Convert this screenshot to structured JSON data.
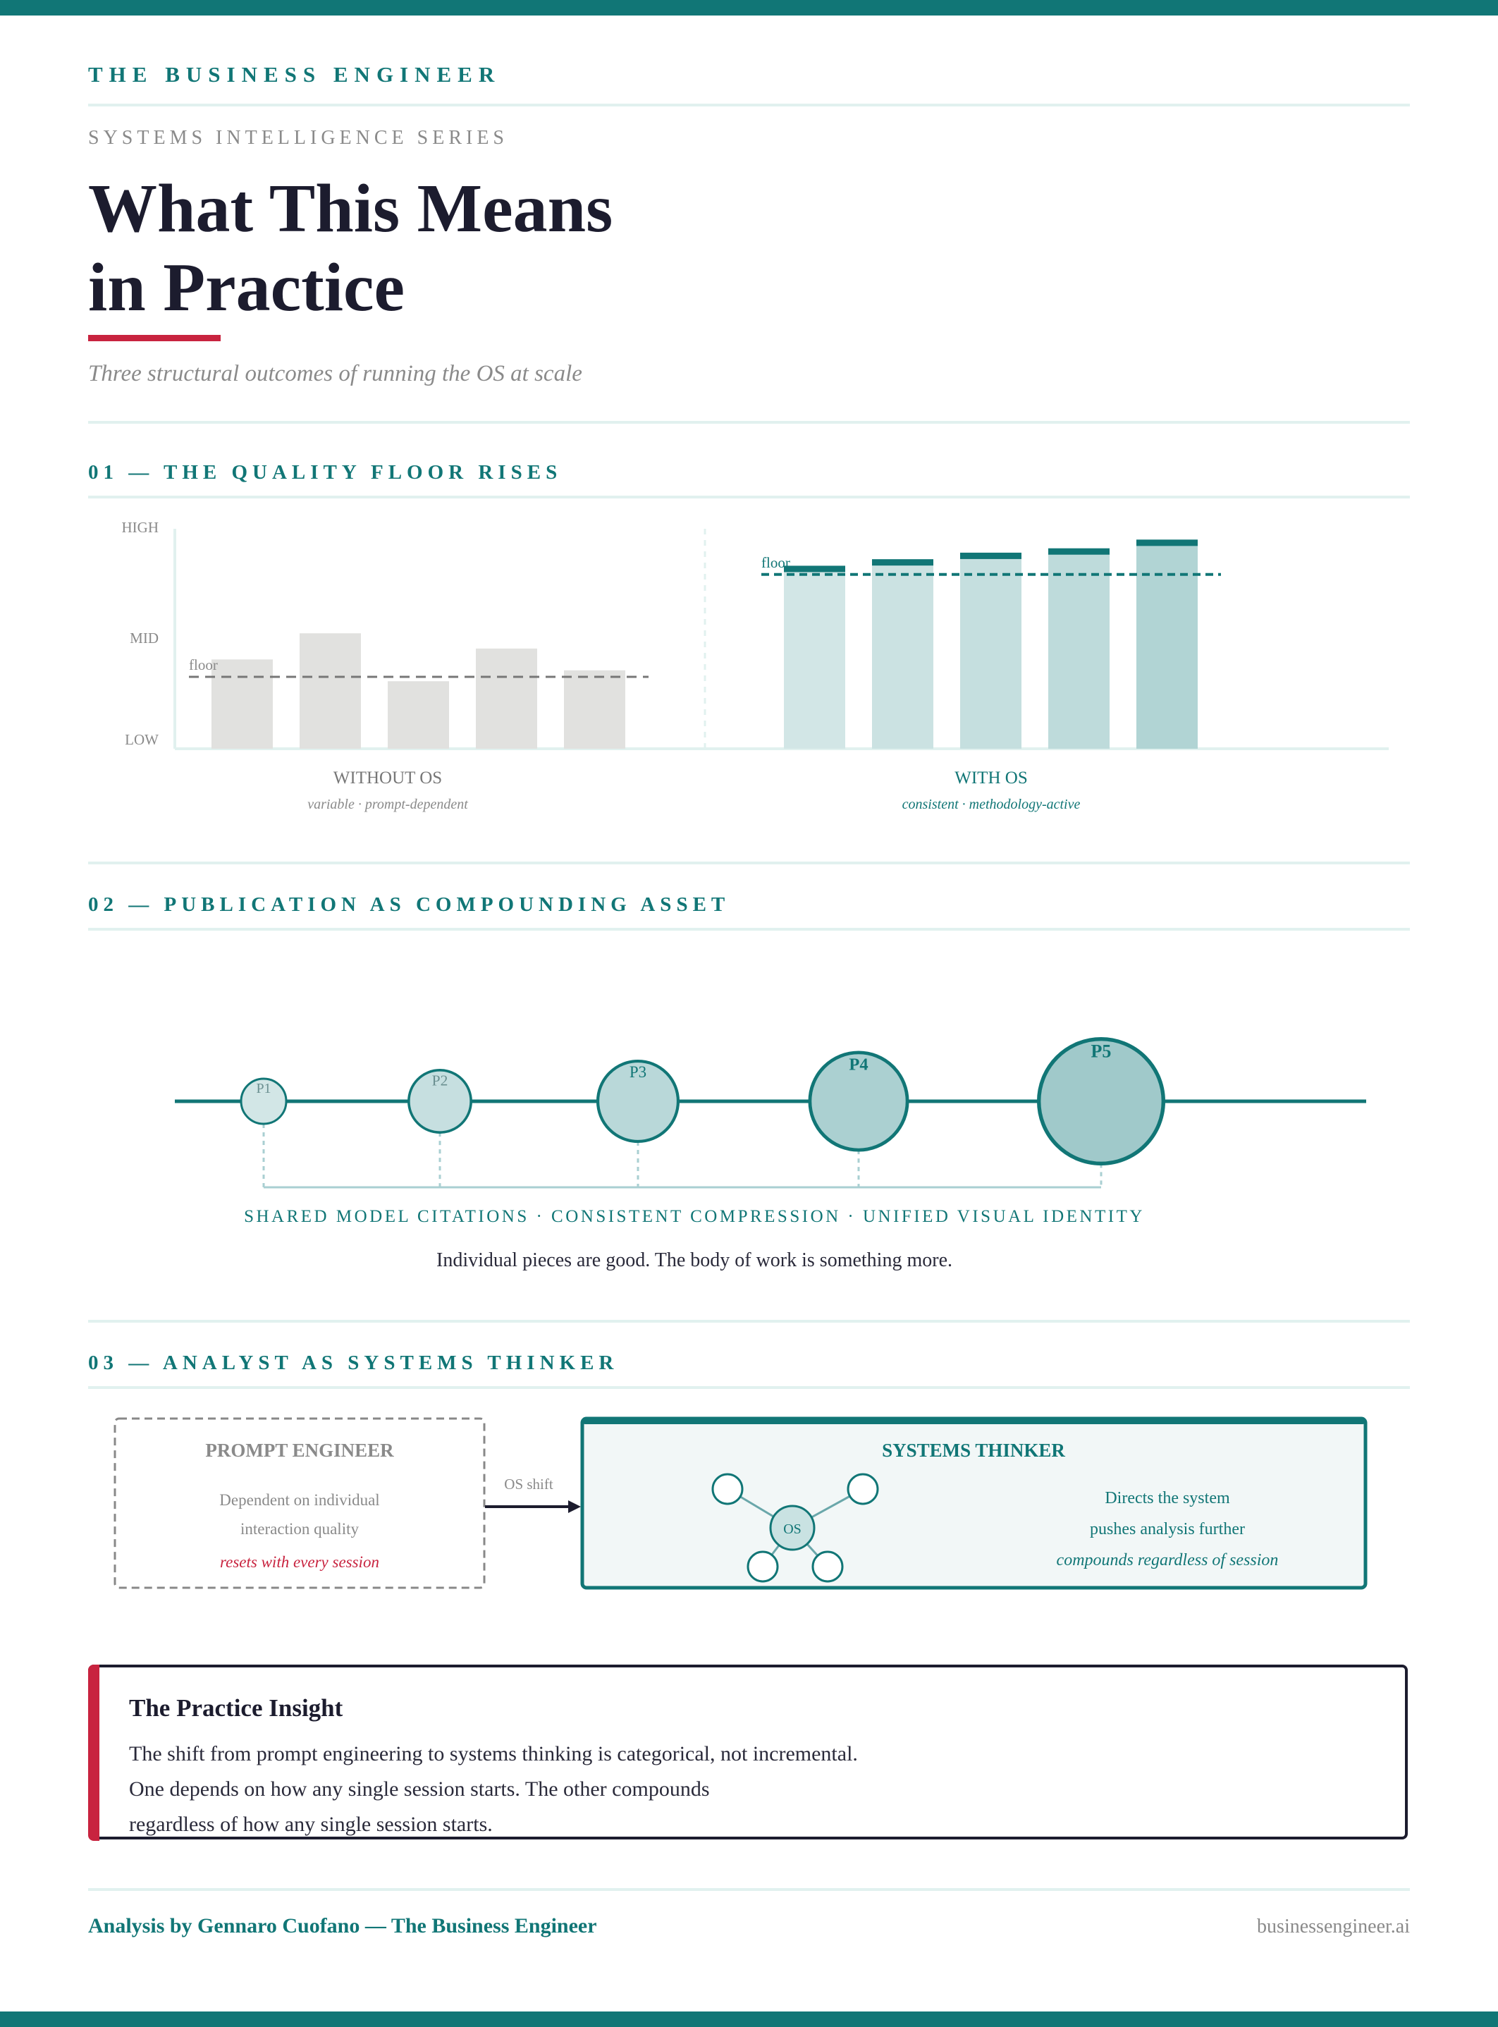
{
  "header": {
    "brand": "THE BUSINESS ENGINEER",
    "series": "SYSTEMS INTELLIGENCE SERIES",
    "title_line1": "What This Means",
    "title_line2": "in Practice",
    "subtitle": "Three structural outcomes of running the OS at scale"
  },
  "colors": {
    "accent": "#117676",
    "alert": "#c8233f",
    "ink": "#1c1c2e",
    "muted": "#8a8a8a"
  },
  "section1": {
    "heading": "01 — THE QUALITY FLOOR RISES",
    "axis_labels": [
      "HIGH",
      "MID",
      "LOW"
    ],
    "floor_label": "floor",
    "without": {
      "title": "WITHOUT OS",
      "note": "variable · prompt-dependent"
    },
    "with": {
      "title": "WITH OS",
      "note": "consistent · methodology-active"
    }
  },
  "chart_data": {
    "type": "bar",
    "ylim": [
      0,
      100
    ],
    "y_tick_labels": [
      "LOW",
      "MID",
      "HIGH"
    ],
    "groups": [
      {
        "name": "WITHOUT OS",
        "values": [
          41,
          53,
          31,
          46,
          36
        ],
        "floor": 33
      },
      {
        "name": "WITH OS",
        "values": [
          84,
          87,
          90,
          92,
          96
        ],
        "floor": 80
      }
    ]
  },
  "section2": {
    "heading": "02 — PUBLICATION AS COMPOUNDING ASSET",
    "nodes": [
      {
        "label": "P1",
        "size": 1
      },
      {
        "label": "P2",
        "size": 1.38
      },
      {
        "label": "P3",
        "size": 1.78
      },
      {
        "label": "P4",
        "size": 2.16
      },
      {
        "label": "P5",
        "size": 2.76
      }
    ],
    "caption": "SHARED MODEL CITATIONS · CONSISTENT COMPRESSION · UNIFIED VISUAL IDENTITY",
    "subcaption": "Individual pieces are good. The body of work is something more."
  },
  "section3": {
    "heading": "03 — ANALYST AS SYSTEMS THINKER",
    "left": {
      "title": "PROMPT ENGINEER",
      "line1": "Dependent on individual",
      "line2": "interaction quality",
      "note": "resets with every session"
    },
    "arrow_label": "OS shift",
    "right": {
      "title": "SYSTEMS THINKER",
      "hub_label": "OS",
      "line1": "Directs the system",
      "line2": "pushes analysis further",
      "note": "compounds regardless of session"
    }
  },
  "insight": {
    "title": "The Practice Insight",
    "line1": "The shift from prompt engineering to systems thinking is categorical, not incremental.",
    "line2": "One depends on how any single session starts. The other compounds",
    "line3": "regardless of how any single session starts."
  },
  "footer": {
    "credit": "Analysis by Gennaro Cuofano — The Business Engineer",
    "site": "businessengineer.ai"
  }
}
